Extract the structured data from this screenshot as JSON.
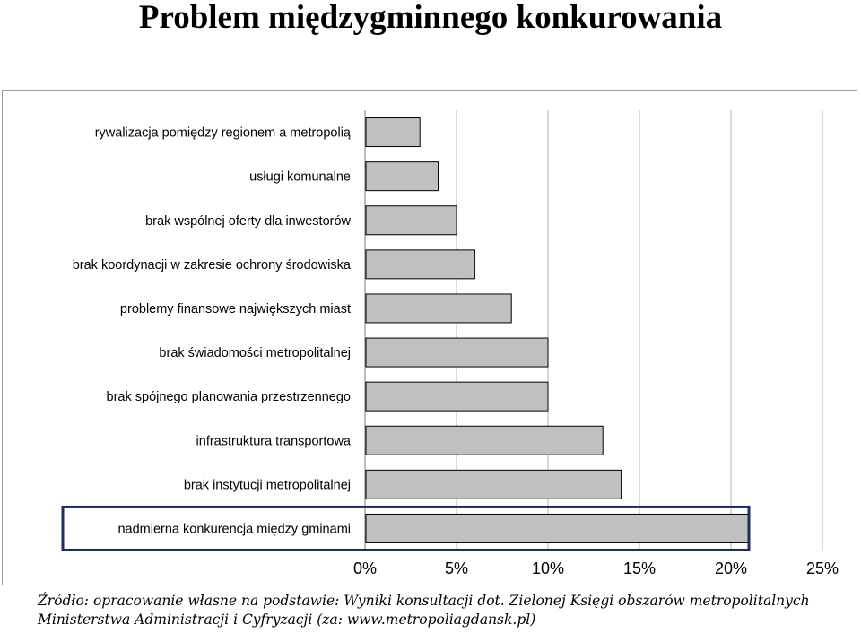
{
  "page": {
    "title": "Problem międzygminnego konkurowania",
    "source_line1": "Źródło: opracowanie własne na podstawie: Wyniki konsultacji dot. Zielonej Księgi obszarów metropolitalnych",
    "source_line2": "Ministerstwa Administracji i Cyfryzacji (za: www.metropoliagdansk.pl)"
  },
  "colors": {
    "bar_fill": "#c0c0c0",
    "bar_stroke": "#000000",
    "grid": "#b4b4b4",
    "highlight_box": "#1f2d5c"
  },
  "chart_data": {
    "type": "bar",
    "orientation": "horizontal",
    "categories": [
      "rywalizacja pomiędzy regionem a metropolią",
      "usługi komunalne",
      "brak wspólnej oferty dla inwestorów",
      "brak koordynacji w zakresie ochrony środowiska",
      "problemy finansowe największych miast",
      "brak świadomości metropolitalnej",
      "brak spójnego planowania przestrzennego",
      "infrastruktura transportowa",
      "brak instytucji metropolitalnej",
      "nadmierna konkurencja między gminami"
    ],
    "values": [
      3,
      4,
      5,
      6,
      8,
      10,
      10,
      13,
      14,
      21
    ],
    "unit": "%",
    "xlim": [
      0,
      25
    ],
    "xticks": [
      "0%",
      "5%",
      "10%",
      "15%",
      "20%",
      "25%"
    ],
    "grid": "vertical",
    "highlighted_category": "nadmierna konkurencja między gminami"
  }
}
